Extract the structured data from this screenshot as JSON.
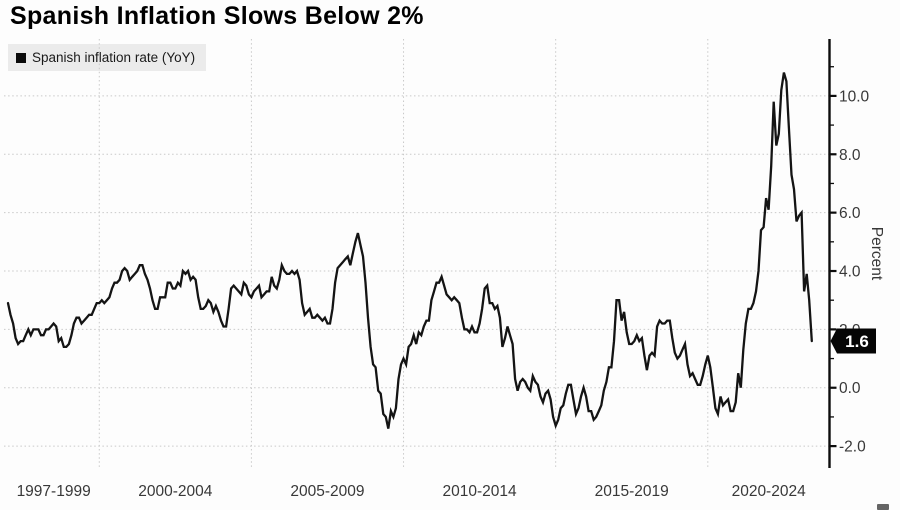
{
  "legend": {
    "marker": "black-square",
    "label": "Spanish inflation rate (YoY)"
  },
  "colors": {
    "background": "#fdfdfd",
    "line": "#141414",
    "grid": "#c9c9c9",
    "axis": "#0d0d0d",
    "tick_label": "#383838",
    "title_text": "#000000",
    "legend_bg": "#ebebeb",
    "badge_bg": "#050505",
    "badge_text": "#ffffff"
  },
  "chart_data": {
    "type": "line",
    "title": "Spanish Inflation Slows Below 2%",
    "grid": "dotted",
    "legend_position": "top-left",
    "last_value_badge": "1.6",
    "x_axis": {
      "range": [
        1997.0,
        2024.0
      ],
      "tick_labels": [
        "1997-1999",
        "2000-2004",
        "2005-2009",
        "2010-2014",
        "2015-2019",
        "2020-2024"
      ],
      "label_spans": [
        [
          1997,
          2000
        ],
        [
          2000,
          2005
        ],
        [
          2005,
          2010
        ],
        [
          2010,
          2015
        ],
        [
          2015,
          2020
        ],
        [
          2020,
          2025
        ]
      ],
      "gridline_years": [
        2000,
        2005,
        2010,
        2015,
        2020
      ]
    },
    "y_axis": {
      "title": "Percent",
      "side": "right",
      "range": [
        -2.75,
        11.95
      ],
      "major_tick_values": [
        10,
        8,
        6,
        4,
        2,
        0,
        -2
      ],
      "major_tick_labels": [
        "10.0",
        "8.0",
        "6.0",
        "4.0",
        "2.0",
        "0.0",
        "-2.0"
      ],
      "minor_tick_values": [
        11,
        9,
        7,
        5,
        3,
        1,
        -1
      ]
    },
    "series": [
      {
        "name": "Spanish inflation rate (YoY)",
        "start_year": 1997,
        "points_per_year": 12,
        "values": [
          2.9,
          2.5,
          2.2,
          1.7,
          1.5,
          1.6,
          1.6,
          1.8,
          2.0,
          1.8,
          2.0,
          2.0,
          2.0,
          1.8,
          1.8,
          2.0,
          2.0,
          2.1,
          2.2,
          2.1,
          1.6,
          1.7,
          1.4,
          1.4,
          1.5,
          1.8,
          2.2,
          2.4,
          2.4,
          2.2,
          2.3,
          2.4,
          2.5,
          2.5,
          2.7,
          2.9,
          2.9,
          3.0,
          2.9,
          3.0,
          3.1,
          3.4,
          3.6,
          3.6,
          3.7,
          4.0,
          4.1,
          4.0,
          3.7,
          3.8,
          3.9,
          4.0,
          4.2,
          4.2,
          3.9,
          3.7,
          3.4,
          3.0,
          2.7,
          2.7,
          3.1,
          3.1,
          3.1,
          3.6,
          3.6,
          3.4,
          3.4,
          3.6,
          3.5,
          4.0,
          3.9,
          4.0,
          3.7,
          3.8,
          3.7,
          3.1,
          2.7,
          2.7,
          2.8,
          3.0,
          2.9,
          2.6,
          2.8,
          2.6,
          2.3,
          2.1,
          2.1,
          2.7,
          3.4,
          3.5,
          3.4,
          3.3,
          3.2,
          3.6,
          3.5,
          3.2,
          3.1,
          3.3,
          3.4,
          3.5,
          3.1,
          3.2,
          3.3,
          3.3,
          3.8,
          3.5,
          3.4,
          3.7,
          4.2,
          4.0,
          3.9,
          3.9,
          4.0,
          3.9,
          4.0,
          3.7,
          2.9,
          2.5,
          2.6,
          2.7,
          2.4,
          2.4,
          2.5,
          2.4,
          2.3,
          2.4,
          2.2,
          2.2,
          2.7,
          3.6,
          4.1,
          4.2,
          4.3,
          4.4,
          4.5,
          4.2,
          4.6,
          5.0,
          5.3,
          4.9,
          4.5,
          3.6,
          2.4,
          1.4,
          0.8,
          0.7,
          -0.1,
          -0.2,
          -0.9,
          -1.0,
          -1.4,
          -0.8,
          -1.0,
          -0.7,
          0.3,
          0.8,
          1.0,
          0.8,
          1.4,
          1.5,
          1.8,
          1.5,
          1.9,
          1.8,
          2.1,
          2.3,
          2.3,
          3.0,
          3.3,
          3.6,
          3.6,
          3.8,
          3.5,
          3.2,
          3.1,
          3.0,
          3.1,
          3.0,
          2.9,
          2.4,
          2.0,
          2.0,
          1.9,
          2.1,
          1.9,
          1.9,
          2.2,
          2.7,
          3.4,
          3.5,
          2.9,
          2.9,
          2.7,
          2.8,
          2.4,
          1.4,
          1.7,
          2.1,
          1.8,
          1.5,
          0.3,
          -0.1,
          0.2,
          0.3,
          0.2,
          0.0,
          -0.1,
          0.4,
          0.2,
          0.1,
          -0.3,
          -0.5,
          -0.2,
          -0.1,
          -0.4,
          -1.0,
          -1.3,
          -1.1,
          -0.7,
          -0.6,
          -0.2,
          0.1,
          0.1,
          -0.4,
          -0.9,
          -0.7,
          -0.3,
          0.0,
          -0.3,
          -0.8,
          -0.8,
          -1.1,
          -1.0,
          -0.8,
          -0.6,
          -0.1,
          0.2,
          0.7,
          0.7,
          1.6,
          3.0,
          3.0,
          2.3,
          2.6,
          1.9,
          1.5,
          1.5,
          1.6,
          1.8,
          1.6,
          1.7,
          1.1,
          0.6,
          1.1,
          1.2,
          1.1,
          2.1,
          2.3,
          2.2,
          2.2,
          2.3,
          2.3,
          1.7,
          1.2,
          1.0,
          1.1,
          1.3,
          1.5,
          0.8,
          0.4,
          0.5,
          0.3,
          0.1,
          0.1,
          0.4,
          0.8,
          1.1,
          0.7,
          0.0,
          -0.7,
          -0.9,
          -0.3,
          -0.6,
          -0.5,
          -0.4,
          -0.8,
          -0.8,
          -0.5,
          0.5,
          0.0,
          1.3,
          2.2,
          2.7,
          2.7,
          2.9,
          3.3,
          4.0,
          5.4,
          5.5,
          6.5,
          6.1,
          7.6,
          9.8,
          8.3,
          8.7,
          10.2,
          10.8,
          10.5,
          8.9,
          7.3,
          6.8,
          5.7,
          5.9,
          6.0,
          3.3,
          3.9,
          3.0,
          1.6
        ]
      }
    ]
  }
}
